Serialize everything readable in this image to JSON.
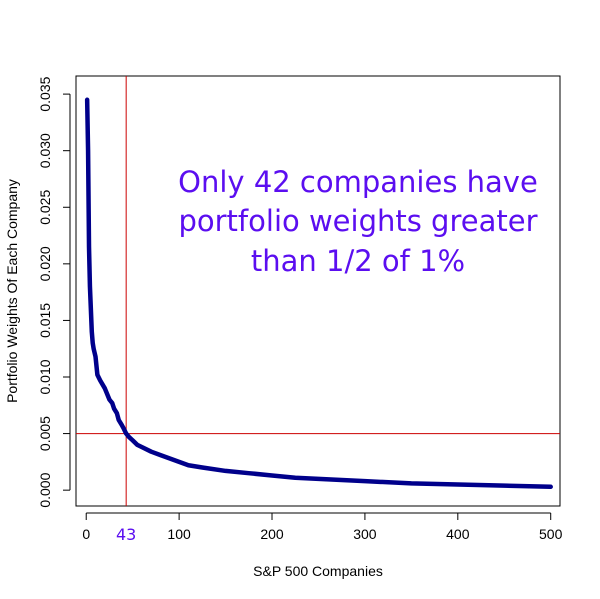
{
  "colors": {
    "curve": "#00008B",
    "refline": "#CC0000",
    "annotation": "#5B0EF0",
    "axis": "#000000"
  },
  "chart_data": {
    "type": "line",
    "xlabel": "S&P 500 Companies",
    "ylabel": "Portfolio Weights Of Each Company",
    "xlim": [
      -11,
      510
    ],
    "ylim": [
      -0.0014,
      0.0366
    ],
    "x_ticks": [
      0,
      100,
      200,
      300,
      400,
      500
    ],
    "x_tick_labels": [
      "0",
      "100",
      "200",
      "300",
      "400",
      "500"
    ],
    "y_ticks": [
      0.0,
      0.005,
      0.01,
      0.015,
      0.02,
      0.025,
      0.03,
      0.035
    ],
    "y_tick_labels": [
      "0.000",
      "0.005",
      "0.010",
      "0.015",
      "0.020",
      "0.025",
      "0.030",
      "0.035"
    ],
    "series": [
      {
        "x": [
          1,
          2,
          3,
          4,
          5,
          6,
          7,
          8,
          10,
          12,
          15,
          20,
          25,
          28,
          30,
          33,
          35,
          38,
          40,
          43,
          46,
          50,
          55,
          60,
          70,
          80,
          90,
          100,
          110,
          125,
          150,
          175,
          200,
          225,
          250,
          275,
          300,
          350,
          400,
          450,
          500
        ],
        "y": [
          0.0345,
          0.03,
          0.0215,
          0.018,
          0.016,
          0.014,
          0.013,
          0.0125,
          0.0118,
          0.0102,
          0.0097,
          0.009,
          0.008,
          0.0077,
          0.0072,
          0.0068,
          0.0062,
          0.0058,
          0.0055,
          0.005,
          0.0047,
          0.0044,
          0.004,
          0.0038,
          0.0034,
          0.0031,
          0.0028,
          0.0025,
          0.0022,
          0.002,
          0.0017,
          0.0015,
          0.0013,
          0.0011,
          0.001,
          0.0009,
          0.0008,
          0.0006,
          0.0005,
          0.0004,
          0.0003
        ]
      }
    ],
    "reference_lines": {
      "x": 43,
      "y": 0.005
    },
    "highlight_x_label": "43",
    "annotation_lines": [
      "Only 42 companies have",
      "portfolio weights greater",
      "than 1/2 of 1%"
    ]
  }
}
